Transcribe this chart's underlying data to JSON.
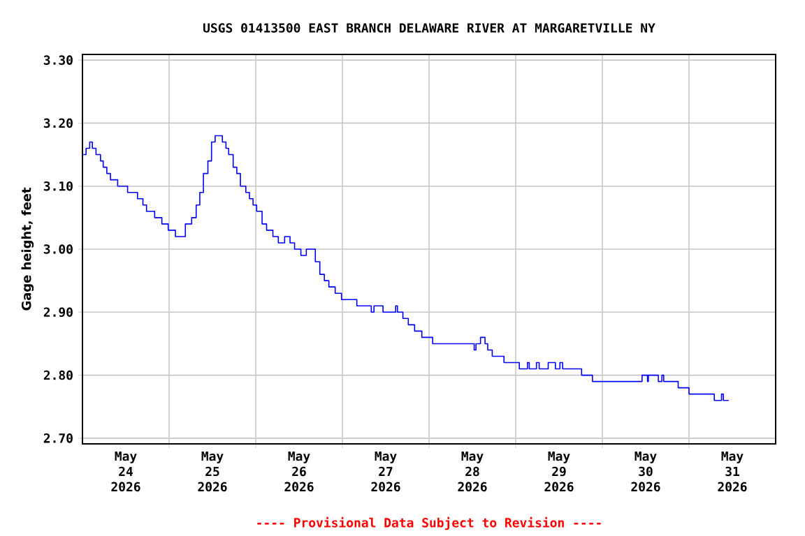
{
  "chart_data": {
    "type": "step",
    "title": "USGS 01413500 EAST BRANCH DELAWARE RIVER AT MARGARETVILLE NY",
    "ylabel": "Gage height, feet",
    "annotations": [
      "---- Provisional Data Subject to Revision ----"
    ],
    "x": [
      "2026-05-24T00:15",
      "2026-05-24T01:00",
      "2026-05-24T02:00",
      "2026-05-24T02:45",
      "2026-05-24T03:45",
      "2026-05-24T05:00",
      "2026-05-24T05:45",
      "2026-05-24T06:45",
      "2026-05-24T07:45",
      "2026-05-24T09:45",
      "2026-05-24T12:30",
      "2026-05-24T15:15",
      "2026-05-24T16:45",
      "2026-05-24T17:45",
      "2026-05-24T20:00",
      "2026-05-24T22:00",
      "2026-05-24T23:45",
      "2026-05-25T01:45",
      "2026-05-25T03:45",
      "2026-05-25T04:30",
      "2026-05-25T06:15",
      "2026-05-25T07:30",
      "2026-05-25T08:30",
      "2026-05-25T09:30",
      "2026-05-25T10:45",
      "2026-05-25T11:45",
      "2026-05-25T12:45",
      "2026-05-25T14:15",
      "2026-05-25T14:45",
      "2026-05-25T15:45",
      "2026-05-25T16:30",
      "2026-05-25T17:45",
      "2026-05-25T18:45",
      "2026-05-25T19:45",
      "2026-05-25T21:15",
      "2026-05-25T22:15",
      "2026-05-25T23:15",
      "2026-05-26T00:15",
      "2026-05-26T01:45",
      "2026-05-26T03:00",
      "2026-05-26T04:45",
      "2026-05-26T06:15",
      "2026-05-26T08:00",
      "2026-05-26T09:30",
      "2026-05-26T10:45",
      "2026-05-26T12:30",
      "2026-05-26T14:00",
      "2026-05-26T15:30",
      "2026-05-26T16:30",
      "2026-05-26T17:45",
      "2026-05-26T19:00",
      "2026-05-26T20:15",
      "2026-05-26T22:00",
      "2026-05-26T23:45",
      "2026-05-27T03:30",
      "2026-05-27T04:00",
      "2026-05-27T07:30",
      "2026-05-27T08:00",
      "2026-05-27T08:45",
      "2026-05-27T10:45",
      "2026-05-27T11:15",
      "2026-05-27T14:00",
      "2026-05-27T14:45",
      "2026-05-27T15:15",
      "2026-05-27T16:45",
      "2026-05-27T18:15",
      "2026-05-27T20:00",
      "2026-05-27T22:00",
      "2026-05-28T01:00",
      "2026-05-28T12:30",
      "2026-05-28T13:00",
      "2026-05-28T14:15",
      "2026-05-28T15:30",
      "2026-05-28T16:15",
      "2026-05-28T17:30",
      "2026-05-28T20:45",
      "2026-05-29T01:00",
      "2026-05-29T03:15",
      "2026-05-29T03:45",
      "2026-05-29T05:45",
      "2026-05-29T06:30",
      "2026-05-29T09:00",
      "2026-05-29T11:00",
      "2026-05-29T12:15",
      "2026-05-29T13:00",
      "2026-05-29T18:15",
      "2026-05-29T21:15",
      "2026-05-30T11:00",
      "2026-05-30T12:30",
      "2026-05-30T12:45",
      "2026-05-30T15:30",
      "2026-05-30T16:30",
      "2026-05-30T17:00",
      "2026-05-30T21:00",
      "2026-05-31T00:00",
      "2026-05-31T07:00",
      "2026-05-31T09:00",
      "2026-05-31T09:30",
      "2026-05-31T11:00"
    ],
    "series": [
      {
        "color": "#0000ff",
        "values": [
          3.15,
          3.16,
          3.17,
          3.16,
          3.15,
          3.14,
          3.13,
          3.12,
          3.11,
          3.1,
          3.09,
          3.08,
          3.07,
          3.06,
          3.05,
          3.04,
          3.03,
          3.02,
          3.02,
          3.04,
          3.05,
          3.07,
          3.09,
          3.12,
          3.14,
          3.17,
          3.18,
          3.18,
          3.17,
          3.16,
          3.15,
          3.13,
          3.12,
          3.1,
          3.09,
          3.08,
          3.07,
          3.06,
          3.04,
          3.03,
          3.02,
          3.01,
          3.02,
          3.01,
          3.0,
          2.99,
          3.0,
          3.0,
          2.98,
          2.96,
          2.95,
          2.94,
          2.93,
          2.92,
          2.92,
          2.91,
          2.91,
          2.9,
          2.91,
          2.91,
          2.9,
          2.9,
          2.91,
          2.9,
          2.89,
          2.88,
          2.87,
          2.86,
          2.85,
          2.84,
          2.85,
          2.86,
          2.85,
          2.84,
          2.83,
          2.82,
          2.81,
          2.82,
          2.81,
          2.82,
          2.81,
          2.82,
          2.81,
          2.82,
          2.81,
          2.8,
          2.79,
          2.8,
          2.79,
          2.8,
          2.79,
          2.8,
          2.79,
          2.78,
          2.77,
          2.76,
          2.77,
          2.76,
          2.76
        ]
      }
    ],
    "xlim": [
      "2026-05-24T00:00",
      "2026-06-01T00:00"
    ],
    "xticks": [
      {
        "value": "2026-05-24T12:00",
        "label": "May 24 2026"
      },
      {
        "value": "2026-05-25T12:00",
        "label": "May 25 2026"
      },
      {
        "value": "2026-05-26T12:00",
        "label": "May 26 2026"
      },
      {
        "value": "2026-05-27T12:00",
        "label": "May 27 2026"
      },
      {
        "value": "2026-05-28T12:00",
        "label": "May 28 2026"
      },
      {
        "value": "2026-05-29T12:00",
        "label": "May 29 2026"
      },
      {
        "value": "2026-05-30T12:00",
        "label": "May 30 2026"
      },
      {
        "value": "2026-05-31T12:00",
        "label": "May 31 2026"
      },
      {
        "value": "2026-05-25T00:00",
        "label": null
      },
      {
        "value": "2026-05-26T00:00",
        "label": null
      },
      {
        "value": "2026-05-27T00:00",
        "label": null
      },
      {
        "value": "2026-05-28T00:00",
        "label": null
      },
      {
        "value": "2026-05-29T00:00",
        "label": null
      },
      {
        "value": "2026-05-30T00:00",
        "label": null
      },
      {
        "value": "2026-05-31T00:00",
        "label": null
      }
    ],
    "ylim": [
      2.691,
      3.309
    ],
    "yticks": [
      {
        "value": 2.7,
        "label": "2.70"
      },
      {
        "value": 2.8,
        "label": "2.80"
      },
      {
        "value": 2.9,
        "label": "2.90"
      },
      {
        "value": 3.0,
        "label": "3.00"
      },
      {
        "value": 3.1,
        "label": "3.10"
      },
      {
        "value": 3.2,
        "label": "3.20"
      },
      {
        "value": 3.3,
        "label": "3.30"
      }
    ],
    "grid": true,
    "marker": "none",
    "line_style": "solid"
  }
}
